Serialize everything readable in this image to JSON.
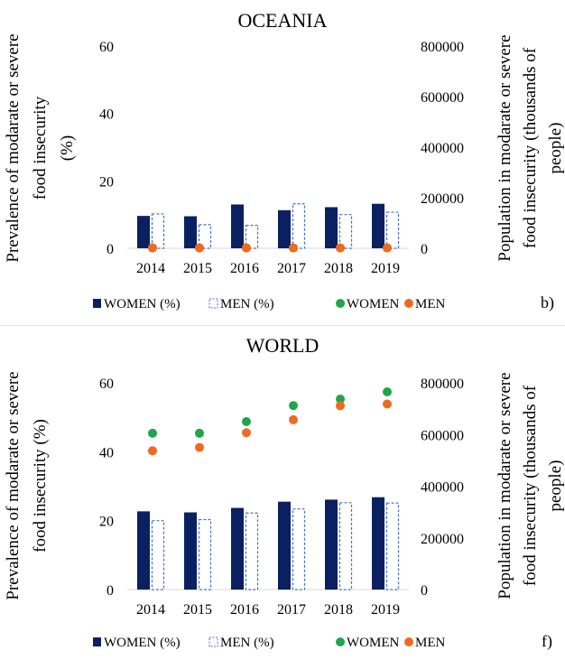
{
  "chart_data": [
    {
      "type": "bar",
      "title": "OCEANIA",
      "panel_label": "b)",
      "categories": [
        "2014",
        "2015",
        "2016",
        "2017",
        "2018",
        "2019"
      ],
      "ylabel": "Prevalence of modarate or severe food insecurity (%)",
      "ylabel_lines": [
        "Prevalence of modarate or severe",
        "food insecurity",
        "(%)"
      ],
      "y2label": "Population in modarate or severe food insecurity (thousands of people)",
      "y2label_lines": [
        "Population in modarate or severe",
        "food insecurity (thousands of",
        "people)"
      ],
      "ylim": [
        0,
        60
      ],
      "y2lim": [
        0,
        800000
      ],
      "yticks": [
        "0",
        "20",
        "40",
        "60"
      ],
      "y2ticks": [
        "0",
        "200000",
        "400000",
        "600000",
        "800000"
      ],
      "grid": false,
      "legend_position": "bottom",
      "series": [
        {
          "name": "WOMEN (%)",
          "kind": "bar",
          "style": "solid",
          "color": "#0b2060",
          "axis": "left",
          "values": [
            9.6,
            9.5,
            13.0,
            11.3,
            12.2,
            13.2
          ]
        },
        {
          "name": "MEN (%)",
          "kind": "bar",
          "style": "dashed",
          "color": "#4472c4",
          "axis": "left",
          "values": [
            10.2,
            7.0,
            6.8,
            13.2,
            10.0,
            10.7
          ]
        },
        {
          "name": "WOMEN",
          "kind": "dot",
          "color": "#1fa64b",
          "axis": "right",
          "values": [
            1500,
            1500,
            1500,
            1500,
            1500,
            1500
          ]
        },
        {
          "name": "MEN",
          "kind": "dot",
          "color": "#ef6a21",
          "axis": "right",
          "values": [
            1500,
            1500,
            1500,
            1500,
            1500,
            1500
          ]
        }
      ]
    },
    {
      "type": "bar",
      "title": "WORLD",
      "panel_label": "f)",
      "categories": [
        "2014",
        "2015",
        "2016",
        "2017",
        "2018",
        "2019"
      ],
      "ylabel": "Prevalence of modarate or severe food insecurity (%)",
      "ylabel_lines": [
        "Prevalence of modarate or severe",
        "food insecurity (%)"
      ],
      "y2label": "Population in modarate or severe food insecurity (thousands of people)",
      "y2label_lines": [
        "Population in modarate or severe",
        "food insecurity (thousands of",
        "people)"
      ],
      "ylim": [
        0,
        60
      ],
      "y2lim": [
        0,
        800000
      ],
      "yticks": [
        "0",
        "20",
        "40",
        "60"
      ],
      "y2ticks": [
        "0",
        "200000",
        "400000",
        "600000",
        "800000"
      ],
      "grid": false,
      "legend_position": "bottom",
      "series": [
        {
          "name": "WOMEN (%)",
          "kind": "bar",
          "style": "solid",
          "color": "#0b2060",
          "axis": "left",
          "values": [
            22.7,
            22.4,
            23.7,
            25.5,
            26.1,
            26.8
          ]
        },
        {
          "name": "MEN (%)",
          "kind": "bar",
          "style": "dashed",
          "color": "#4472c4",
          "axis": "left",
          "values": [
            20.0,
            20.3,
            22.2,
            23.4,
            25.2,
            25.1
          ]
        },
        {
          "name": "WOMEN",
          "kind": "dot",
          "color": "#1fa64b",
          "axis": "right",
          "values": [
            605000,
            605000,
            650000,
            712000,
            737000,
            765000
          ]
        },
        {
          "name": "MEN",
          "kind": "dot",
          "color": "#ef6a21",
          "axis": "right",
          "values": [
            537000,
            550000,
            607000,
            657000,
            711000,
            718000
          ]
        }
      ]
    }
  ]
}
